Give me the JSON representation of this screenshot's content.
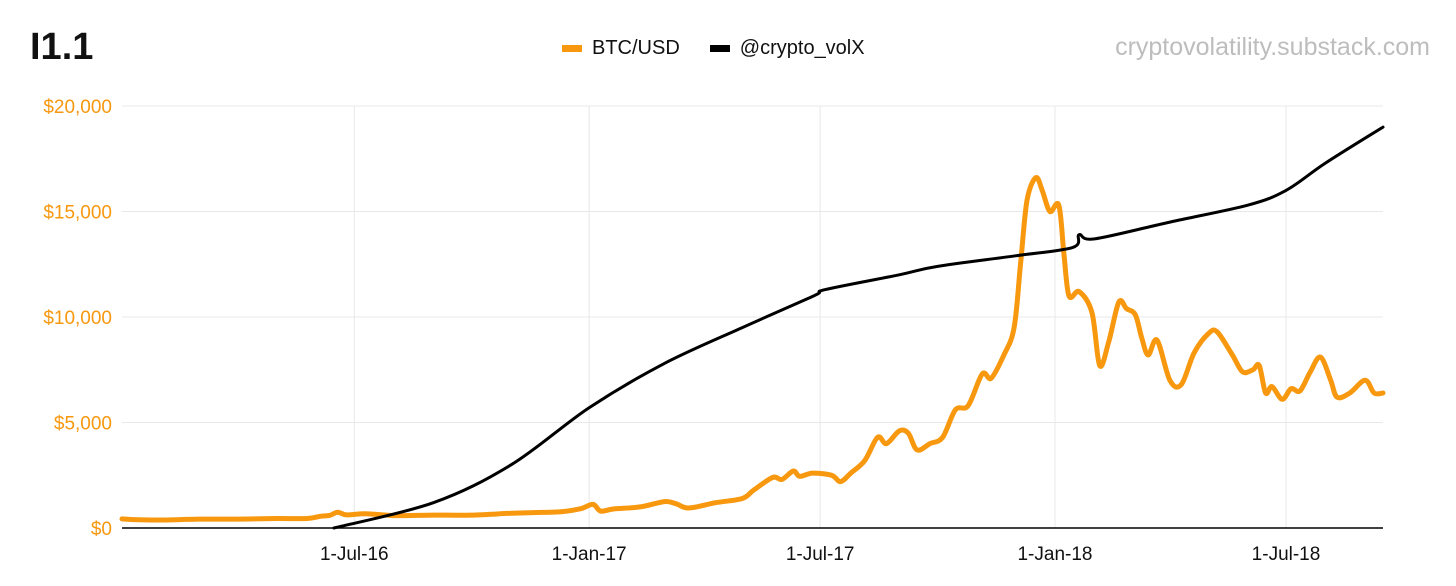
{
  "header": {
    "chart_id": "I1.1",
    "source": "cryptovolatility.substack.com"
  },
  "colors": {
    "btc": "#f7980f",
    "volx": "#000000",
    "grid": "#e8e8e8",
    "y_axis_text": "#f7980f",
    "source_text": "#bdbdbd"
  },
  "chart_data": {
    "type": "line",
    "title": "",
    "xlabel": "",
    "ylabel": "",
    "ylim": [
      0,
      20000
    ],
    "xlim": [
      "2016-01-01",
      "2018-09-15"
    ],
    "yticks": [
      0,
      5000,
      10000,
      15000,
      20000
    ],
    "ytick_labels": [
      "$0",
      "$5,000",
      "$10,000",
      "$15,000",
      "$20,000"
    ],
    "xticks": [
      "2016-07-01",
      "2017-01-01",
      "2017-07-01",
      "2018-01-01",
      "2018-07-01"
    ],
    "xtick_labels": [
      "1-Jul-16",
      "1-Jan-17",
      "1-Jul-17",
      "1-Jan-18",
      "1-Jul-18"
    ],
    "grid": true,
    "legend_position": "top-center",
    "series": [
      {
        "name": "BTC/USD",
        "color": "#f7980f",
        "points": [
          [
            "2016-01-01",
            430
          ],
          [
            "2016-01-15",
            390
          ],
          [
            "2016-02-01",
            380
          ],
          [
            "2016-03-01",
            420
          ],
          [
            "2016-04-01",
            420
          ],
          [
            "2016-05-01",
            450
          ],
          [
            "2016-05-25",
            450
          ],
          [
            "2016-06-05",
            560
          ],
          [
            "2016-06-12",
            600
          ],
          [
            "2016-06-18",
            750
          ],
          [
            "2016-06-25",
            620
          ],
          [
            "2016-07-10",
            680
          ],
          [
            "2016-08-01",
            590
          ],
          [
            "2016-09-01",
            610
          ],
          [
            "2016-10-01",
            610
          ],
          [
            "2016-11-01",
            700
          ],
          [
            "2016-11-25",
            740
          ],
          [
            "2016-12-10",
            770
          ],
          [
            "2016-12-25",
            910
          ],
          [
            "2017-01-04",
            1120
          ],
          [
            "2017-01-10",
            800
          ],
          [
            "2017-01-20",
            900
          ],
          [
            "2017-02-10",
            1000
          ],
          [
            "2017-03-01",
            1250
          ],
          [
            "2017-03-10",
            1150
          ],
          [
            "2017-03-20",
            950
          ],
          [
            "2017-04-10",
            1200
          ],
          [
            "2017-05-01",
            1400
          ],
          [
            "2017-05-10",
            1800
          ],
          [
            "2017-05-25",
            2400
          ],
          [
            "2017-06-01",
            2300
          ],
          [
            "2017-06-10",
            2700
          ],
          [
            "2017-06-15",
            2450
          ],
          [
            "2017-06-25",
            2600
          ],
          [
            "2017-07-10",
            2500
          ],
          [
            "2017-07-17",
            2200
          ],
          [
            "2017-07-25",
            2600
          ],
          [
            "2017-08-05",
            3200
          ],
          [
            "2017-08-15",
            4300
          ],
          [
            "2017-08-22",
            4000
          ],
          [
            "2017-09-01",
            4600
          ],
          [
            "2017-09-08",
            4500
          ],
          [
            "2017-09-15",
            3700
          ],
          [
            "2017-09-25",
            4000
          ],
          [
            "2017-10-05",
            4300
          ],
          [
            "2017-10-15",
            5600
          ],
          [
            "2017-10-25",
            5800
          ],
          [
            "2017-11-05",
            7300
          ],
          [
            "2017-11-12",
            7100
          ],
          [
            "2017-11-22",
            8200
          ],
          [
            "2017-11-30",
            9500
          ],
          [
            "2017-12-05",
            12500
          ],
          [
            "2017-12-10",
            15500
          ],
          [
            "2017-12-17",
            16600
          ],
          [
            "2017-12-22",
            16000
          ],
          [
            "2017-12-28",
            15000
          ],
          [
            "2018-01-04",
            15300
          ],
          [
            "2018-01-08",
            13000
          ],
          [
            "2018-01-12",
            11000
          ],
          [
            "2018-01-20",
            11200
          ],
          [
            "2018-01-30",
            10200
          ],
          [
            "2018-02-05",
            7700
          ],
          [
            "2018-02-12",
            8800
          ],
          [
            "2018-02-20",
            10700
          ],
          [
            "2018-02-26",
            10400
          ],
          [
            "2018-03-05",
            10100
          ],
          [
            "2018-03-10",
            9000
          ],
          [
            "2018-03-15",
            8200
          ],
          [
            "2018-03-22",
            8900
          ],
          [
            "2018-04-01",
            7000
          ],
          [
            "2018-04-10",
            6800
          ],
          [
            "2018-04-20",
            8300
          ],
          [
            "2018-05-01",
            9200
          ],
          [
            "2018-05-08",
            9300
          ],
          [
            "2018-05-20",
            8200
          ],
          [
            "2018-05-28",
            7400
          ],
          [
            "2018-06-05",
            7500
          ],
          [
            "2018-06-10",
            7700
          ],
          [
            "2018-06-15",
            6400
          ],
          [
            "2018-06-20",
            6700
          ],
          [
            "2018-06-28",
            6100
          ],
          [
            "2018-07-05",
            6600
          ],
          [
            "2018-07-12",
            6500
          ],
          [
            "2018-07-20",
            7400
          ],
          [
            "2018-07-28",
            8100
          ],
          [
            "2018-08-05",
            7000
          ],
          [
            "2018-08-10",
            6200
          ],
          [
            "2018-08-20",
            6400
          ],
          [
            "2018-09-01",
            7000
          ],
          [
            "2018-09-08",
            6400
          ],
          [
            "2018-09-15",
            6400
          ]
        ]
      },
      {
        "name": "@crypto_volX",
        "color": "#000000",
        "points": [
          [
            "2016-06-15",
            0
          ],
          [
            "2016-09-01",
            1200
          ],
          [
            "2016-11-01",
            3000
          ],
          [
            "2017-01-01",
            5700
          ],
          [
            "2017-03-01",
            7800
          ],
          [
            "2017-05-01",
            9500
          ],
          [
            "2017-06-26",
            11000
          ],
          [
            "2017-07-05",
            11300
          ],
          [
            "2017-09-01",
            12000
          ],
          [
            "2017-10-01",
            12400
          ],
          [
            "2017-12-01",
            12900
          ],
          [
            "2018-01-15",
            13300
          ],
          [
            "2018-01-20",
            13900
          ],
          [
            "2018-02-01",
            13700
          ],
          [
            "2018-04-01",
            14500
          ],
          [
            "2018-06-01",
            15300
          ],
          [
            "2018-07-01",
            16000
          ],
          [
            "2018-08-01",
            17300
          ],
          [
            "2018-09-15",
            19000
          ]
        ]
      }
    ]
  }
}
